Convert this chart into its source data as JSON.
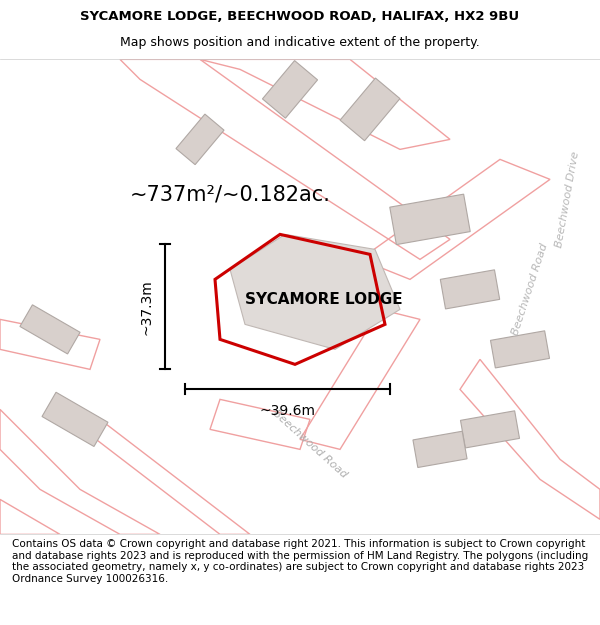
{
  "title_line1": "SYCAMORE LODGE, BEECHWOOD ROAD, HALIFAX, HX2 9BU",
  "title_line2": "Map shows position and indicative extent of the property.",
  "property_label": "SYCAMORE LODGE",
  "area_label": "~737m²/~0.182ac.",
  "dim_vertical": "~37.3m",
  "dim_horizontal": "~39.6m",
  "copyright_text": "Contains OS data © Crown copyright and database right 2021. This information is subject to Crown copyright and database rights 2023 and is reproduced with the permission of HM Land Registry. The polygons (including the associated geometry, namely x, y co-ordinates) are subject to Crown copyright and database rights 2023 Ordnance Survey 100026316.",
  "bg_color": "#f9f6f4",
  "map_bg": "#f8f4f2",
  "road_color": "#f0a0a0",
  "building_color": "#d8d0cc",
  "property_outline_color": "#cc0000",
  "road_label_color": "#aaaaaa",
  "title_fontsize": 9.5,
  "subtitle_fontsize": 9,
  "label_fontsize": 11,
  "area_fontsize": 15,
  "dim_fontsize": 10,
  "copyright_fontsize": 7.5
}
